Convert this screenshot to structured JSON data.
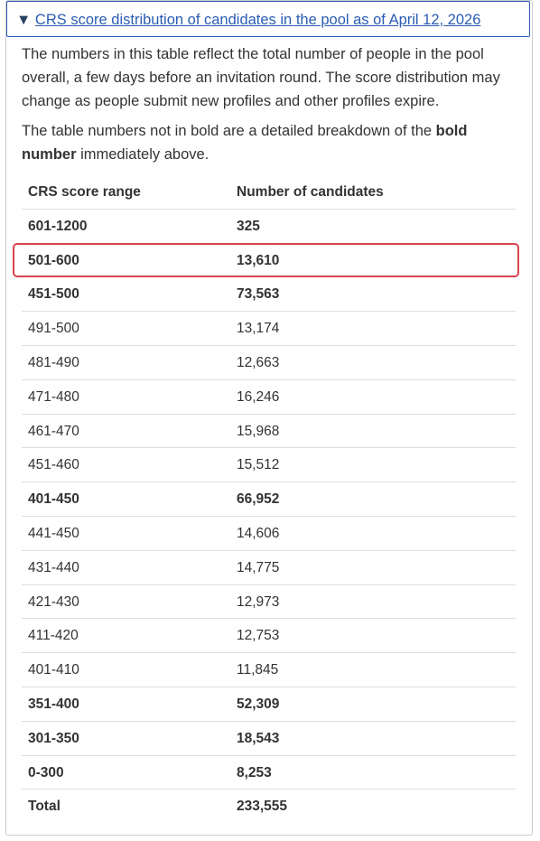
{
  "summary": "CRS score distribution of candidates in the pool as of April 12, 2026",
  "paragraphs": [
    "The numbers in this table reflect the total number of people in the pool overall, a few days before an invitation round. The score distribution may change as people submit new profiles and other profiles expire."
  ],
  "note": {
    "before": "The table numbers not in bold are a detailed breakdown of the ",
    "bold": "bold number",
    "after": " immediately above."
  },
  "table": {
    "headers": [
      "CRS score range",
      "Number of candidates"
    ],
    "groups": [
      {
        "range": "601-1200",
        "count": "325",
        "breakdown": []
      },
      {
        "range": "501-600",
        "count": "13,610",
        "breakdown": []
      },
      {
        "range": "451-500",
        "count": "73,563",
        "breakdown": [
          [
            "491-500",
            "13,174"
          ],
          [
            "481-490",
            "12,663"
          ],
          [
            "471-480",
            "16,246"
          ],
          [
            "461-470",
            "15,968"
          ],
          [
            "451-460",
            "15,512"
          ]
        ]
      },
      {
        "range": "401-450",
        "count": "66,952",
        "breakdown": [
          [
            "441-450",
            "14,606"
          ],
          [
            "431-440",
            "14,775"
          ],
          [
            "421-430",
            "12,973"
          ],
          [
            "411-420",
            "12,753"
          ],
          [
            "401-410",
            "11,845"
          ]
        ]
      },
      {
        "range": "351-400",
        "count": "52,309",
        "breakdown": []
      },
      {
        "range": "301-350",
        "count": "18,543",
        "breakdown": []
      },
      {
        "range": "0-300",
        "count": "8,253",
        "breakdown": []
      }
    ],
    "total": {
      "label": "Total",
      "count": "233,555"
    }
  }
}
